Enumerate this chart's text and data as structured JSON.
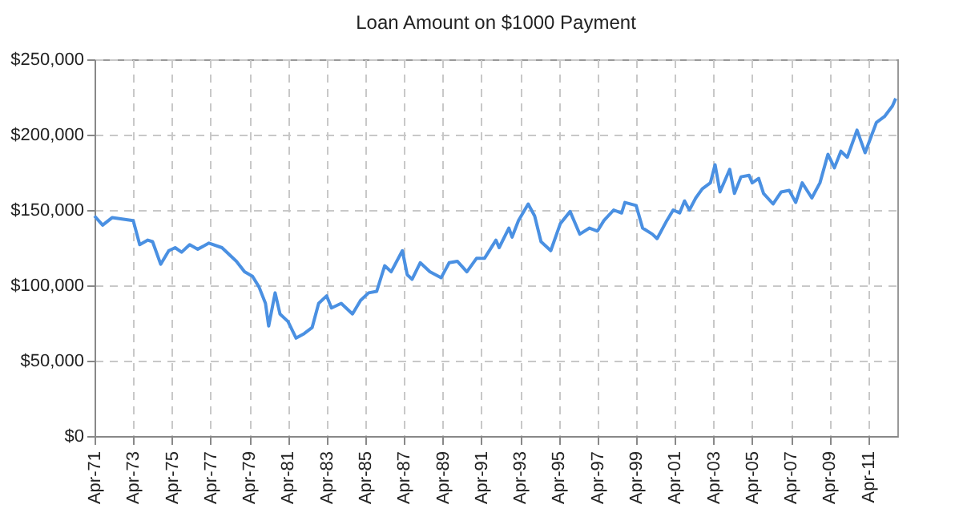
{
  "chart_data": {
    "type": "line",
    "title": "Loan Amount on $1000 Payment",
    "x": [
      "1971-04",
      "1971-09",
      "1972-03",
      "1972-09",
      "1973-04",
      "1973-08",
      "1974-01",
      "1974-04",
      "1974-09",
      "1975-02",
      "1975-06",
      "1975-10",
      "1976-03",
      "1976-08",
      "1977-03",
      "1977-11",
      "1978-08",
      "1979-01",
      "1979-06",
      "1979-10",
      "1980-02",
      "1980-04",
      "1980-08",
      "1980-11",
      "1981-04",
      "1981-09",
      "1982-02",
      "1982-07",
      "1982-11",
      "1983-04",
      "1983-07",
      "1984-01",
      "1984-08",
      "1985-01",
      "1985-06",
      "1985-11",
      "1986-04",
      "1986-08",
      "1987-03",
      "1987-06",
      "1987-09",
      "1988-02",
      "1988-08",
      "1989-03",
      "1989-08",
      "1990-01",
      "1990-07",
      "1991-01",
      "1991-06",
      "1992-01",
      "1992-03",
      "1992-09",
      "1992-11",
      "1993-03",
      "1993-09",
      "1994-01",
      "1994-05",
      "1994-11",
      "1995-05",
      "1995-11",
      "1996-05",
      "1996-11",
      "1997-04",
      "1997-08",
      "1998-02",
      "1998-07",
      "1998-09",
      "1999-04",
      "1999-08",
      "2000-02",
      "2000-05",
      "2000-11",
      "2001-03",
      "2001-07",
      "2001-10",
      "2002-01",
      "2002-05",
      "2002-09",
      "2003-02",
      "2003-05",
      "2003-08",
      "2004-02",
      "2004-05",
      "2004-09",
      "2005-02",
      "2005-04",
      "2005-08",
      "2005-11",
      "2006-05",
      "2006-10",
      "2007-03",
      "2007-07",
      "2007-11",
      "2008-05",
      "2008-10",
      "2009-03",
      "2009-07",
      "2009-11",
      "2010-03",
      "2010-09",
      "2011-02",
      "2011-09",
      "2012-02",
      "2012-07",
      "2012-09"
    ],
    "series": [
      {
        "color": "#4a90e2",
        "values": [
          146000,
          140000,
          145000,
          144000,
          143000,
          127000,
          130000,
          129000,
          114000,
          123000,
          125000,
          122000,
          127000,
          124000,
          128000,
          125000,
          116000,
          109000,
          106000,
          99000,
          88000,
          73000,
          95000,
          81000,
          76000,
          65000,
          68000,
          72000,
          88000,
          93000,
          85000,
          88000,
          81000,
          90000,
          95000,
          96000,
          113000,
          109000,
          123000,
          107000,
          104000,
          115000,
          109000,
          105000,
          115000,
          116000,
          109000,
          118000,
          118000,
          130000,
          125000,
          138000,
          132000,
          143000,
          154000,
          146000,
          129000,
          123000,
          141000,
          149000,
          134000,
          138000,
          136000,
          143000,
          150000,
          148000,
          155000,
          153000,
          138000,
          134000,
          131000,
          143000,
          150000,
          148000,
          156000,
          150000,
          158000,
          164000,
          168000,
          180000,
          162000,
          177000,
          161000,
          172000,
          173000,
          168000,
          171000,
          161000,
          154000,
          162000,
          163000,
          155000,
          168000,
          158000,
          168000,
          187000,
          178000,
          189000,
          185000,
          203000,
          188000,
          208000,
          212000,
          219000,
          224000
        ]
      }
    ],
    "xlim": [
      "1971-04",
      "2012-10"
    ],
    "xticks": [
      {
        "value": "1971-04",
        "label": "Apr-71"
      },
      {
        "value": "1973-04",
        "label": "Apr-73"
      },
      {
        "value": "1975-04",
        "label": "Apr-75"
      },
      {
        "value": "1977-04",
        "label": "Apr-77"
      },
      {
        "value": "1979-04",
        "label": "Apr-79"
      },
      {
        "value": "1981-04",
        "label": "Apr-81"
      },
      {
        "value": "1983-04",
        "label": "Apr-83"
      },
      {
        "value": "1985-04",
        "label": "Apr-85"
      },
      {
        "value": "1987-04",
        "label": "Apr-87"
      },
      {
        "value": "1989-04",
        "label": "Apr-89"
      },
      {
        "value": "1991-04",
        "label": "Apr-91"
      },
      {
        "value": "1993-04",
        "label": "Apr-93"
      },
      {
        "value": "1995-04",
        "label": "Apr-95"
      },
      {
        "value": "1997-04",
        "label": "Apr-97"
      },
      {
        "value": "1999-04",
        "label": "Apr-99"
      },
      {
        "value": "2001-04",
        "label": "Apr-01"
      },
      {
        "value": "2003-04",
        "label": "Apr-03"
      },
      {
        "value": "2005-04",
        "label": "Apr-05"
      },
      {
        "value": "2007-04",
        "label": "Apr-07"
      },
      {
        "value": "2009-04",
        "label": "Apr-09"
      },
      {
        "value": "2011-04",
        "label": "Apr-11"
      }
    ],
    "ylim": [
      0,
      250000
    ],
    "yticks": [
      {
        "value": 0,
        "label": "$0"
      },
      {
        "value": 50000,
        "label": "$50,000"
      },
      {
        "value": 100000,
        "label": "$100,000"
      },
      {
        "value": 150000,
        "label": "$150,000"
      },
      {
        "value": 200000,
        "label": "$200,000"
      },
      {
        "value": 250000,
        "label": "$250,000"
      }
    ],
    "grid": true,
    "line_style": "solid"
  }
}
